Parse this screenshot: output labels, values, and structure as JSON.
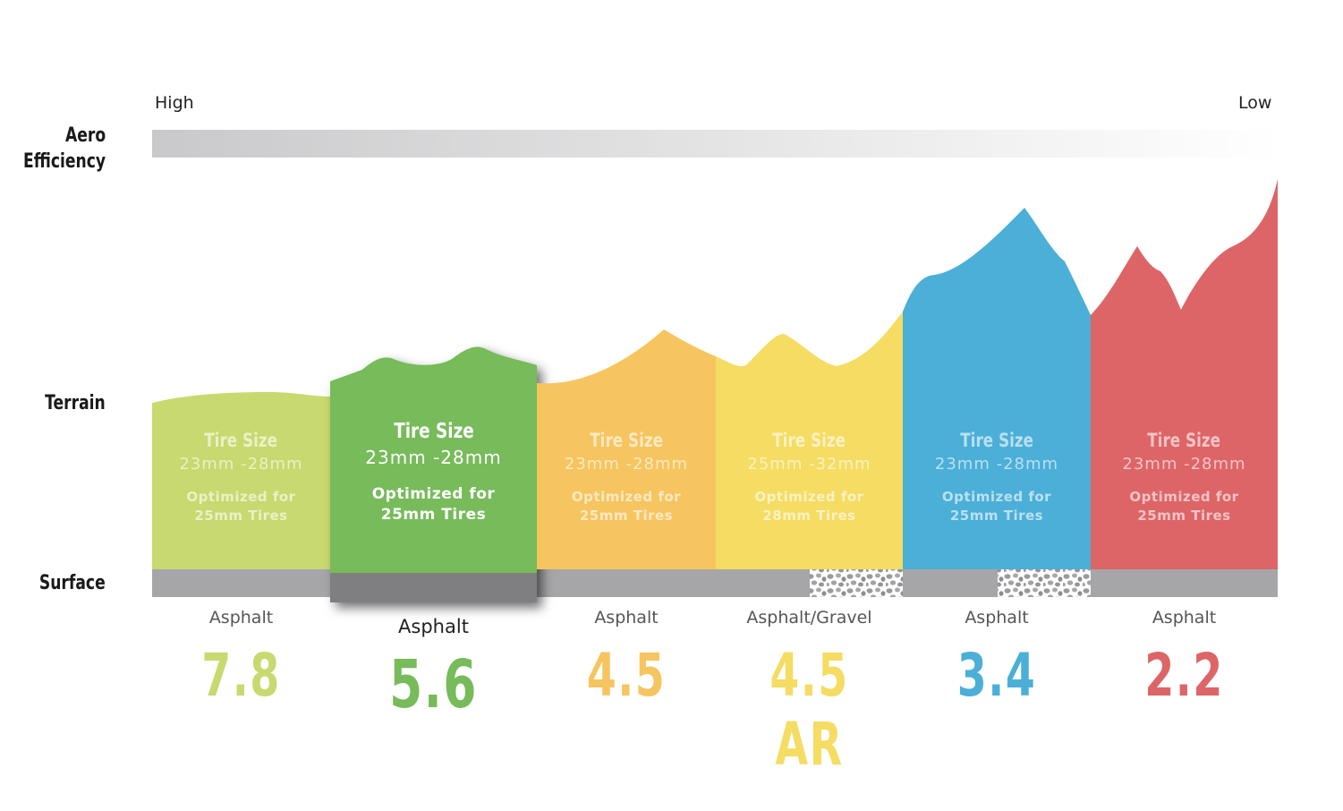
{
  "axis": {
    "aero_label_1": "Aero",
    "aero_label_2": "Efficiency",
    "high": "High",
    "low": "Low",
    "terrain_label": "Terrain",
    "surface_label": "Surface"
  },
  "colors": {
    "asphalt": "#a6a6a8",
    "asphalt_dark": "#7f7f81",
    "text_dark": "#1a1a1a"
  },
  "chart_data": {
    "type": "diagram",
    "title": "",
    "items": [
      {
        "tire_title": "Tire Size",
        "tire_range": "23mm -28mm",
        "opt_line1": "Optimized for",
        "opt_line2": "25mm Tires",
        "surface": "Asphalt",
        "rating": "7.8",
        "color": "#c8d96f",
        "highlighted": false,
        "gravel": false
      },
      {
        "tire_title": "Tire Size",
        "tire_range": "23mm -28mm",
        "opt_line1": "Optimized for",
        "opt_line2": "25mm Tires",
        "surface": "Asphalt",
        "rating": "5.6",
        "color": "#77bb5a",
        "highlighted": true,
        "gravel": false
      },
      {
        "tire_title": "Tire Size",
        "tire_range": "23mm -28mm",
        "opt_line1": "Optimized for",
        "opt_line2": "25mm Tires",
        "surface": "Asphalt",
        "rating": "4.5",
        "color": "#f6c560",
        "highlighted": false,
        "gravel": false
      },
      {
        "tire_title": "Tire Size",
        "tire_range": "25mm -32mm",
        "opt_line1": "Optimized for",
        "opt_line2": "28mm Tires",
        "surface": "Asphalt/Gravel",
        "rating": "4.5 AR",
        "color": "#f5dc63",
        "highlighted": false,
        "gravel": true
      },
      {
        "tire_title": "Tire Size",
        "tire_range": "23mm -28mm",
        "opt_line1": "Optimized for",
        "opt_line2": "25mm Tires",
        "surface": "Asphalt",
        "rating": "3.4",
        "color": "#4bafd8",
        "highlighted": false,
        "gravel": true
      },
      {
        "tire_title": "Tire Size",
        "tire_range": "23mm -28mm",
        "opt_line1": "Optimized for",
        "opt_line2": "25mm Tires",
        "surface": "Asphalt",
        "rating": "2.2",
        "color": "#dd6567",
        "highlighted": false,
        "gravel": false
      }
    ]
  }
}
